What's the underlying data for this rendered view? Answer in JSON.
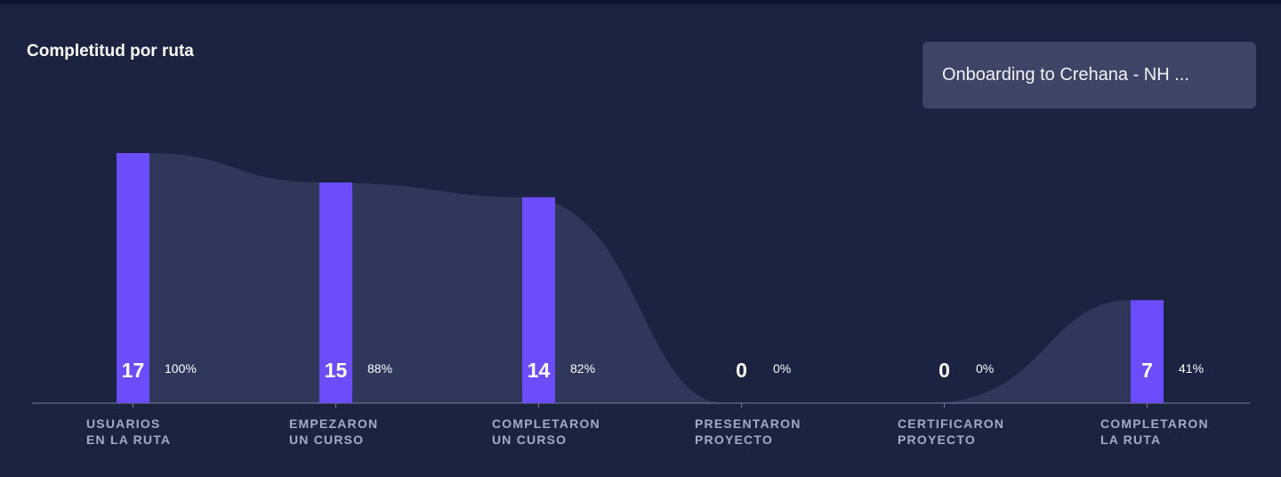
{
  "header": {
    "title": "Completitud por ruta"
  },
  "route_select": {
    "value": "Onboarding to Crehana - NH ..."
  },
  "colors": {
    "background": "#1b2340",
    "bar": "#6c4dfc",
    "area": "#30375a",
    "axis": "#7a7f99",
    "category_label": "#a5a9c5"
  },
  "chart_data": {
    "type": "bar",
    "title": "Completitud por ruta",
    "categories": [
      [
        "USUARIOS",
        "EN LA RUTA"
      ],
      [
        "EMPEZARON",
        "UN CURSO"
      ],
      [
        "COMPLETARON",
        "UN CURSO"
      ],
      [
        "PRESENTARON",
        "PROYECTO"
      ],
      [
        "CERTIFICARON",
        "PROYECTO"
      ],
      [
        "COMPLETARON",
        "LA RUTA"
      ]
    ],
    "values": [
      17,
      15,
      14,
      0,
      0,
      7
    ],
    "percent_labels": [
      "100%",
      "88%",
      "82%",
      "0%",
      "0%",
      "41%"
    ],
    "ylim": [
      0,
      17
    ],
    "grid": false,
    "legend": "none"
  }
}
